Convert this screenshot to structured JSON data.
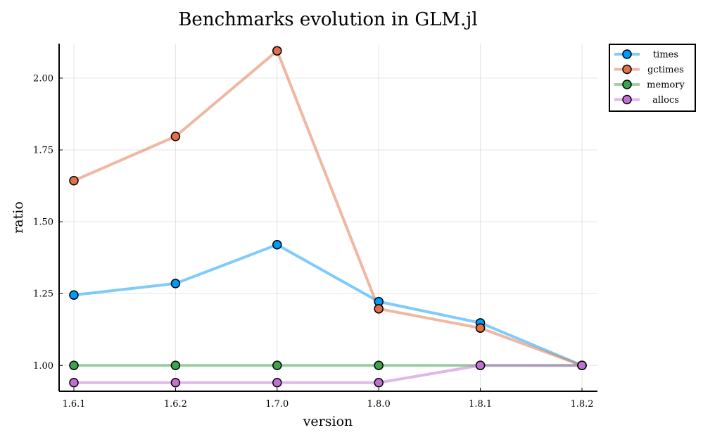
{
  "chart_data": {
    "type": "line",
    "title": "Benchmarks evolution in GLM.jl",
    "xlabel": "version",
    "ylabel": "ratio",
    "categories": [
      "1.6.1",
      "1.6.2",
      "1.7.0",
      "1.8.0",
      "1.8.1",
      "1.8.2"
    ],
    "ylim": [
      0.91,
      2.12
    ],
    "yticks": [
      1.0,
      1.25,
      1.5,
      1.75,
      2.0
    ],
    "ytick_labels": [
      "1.00",
      "1.25",
      "1.50",
      "1.75",
      "2.00"
    ],
    "grid": true,
    "legend_position": "top-right",
    "series": [
      {
        "name": "times",
        "values": [
          1.245,
          1.285,
          1.42,
          1.222,
          1.148,
          1.0
        ],
        "color": "#009af9"
      },
      {
        "name": "gctimes",
        "values": [
          1.643,
          1.797,
          2.095,
          1.197,
          1.13,
          1.0
        ],
        "color": "#e26f46"
      },
      {
        "name": "memory",
        "values": [
          1.0,
          1.0,
          1.0,
          1.0,
          1.0,
          1.0
        ],
        "color": "#3da44d"
      },
      {
        "name": "allocs",
        "values": [
          0.94,
          0.94,
          0.94,
          0.94,
          1.0,
          1.0
        ],
        "color": "#c271d2"
      }
    ]
  }
}
